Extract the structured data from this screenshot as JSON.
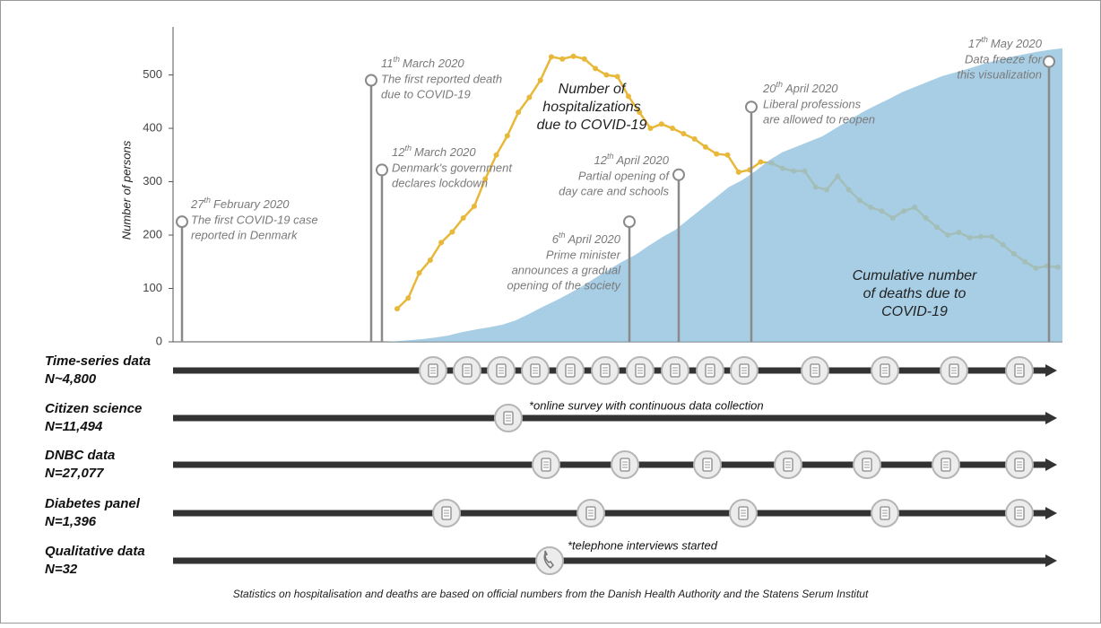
{
  "chart_data": {
    "type": "timeline",
    "y_label": "Number of persons",
    "ylim": [
      0,
      590
    ],
    "yticks": [
      0,
      100,
      200,
      300,
      400,
      500
    ],
    "series": [
      {
        "name": "hospitalizations",
        "type": "line",
        "color": "#e8b83a",
        "label_lines": [
          "Number of",
          "hospitalizations",
          "due to COVID-19"
        ],
        "values": [
          62,
          82,
          129,
          153,
          186,
          206,
          232,
          254,
          305,
          350,
          386,
          430,
          458,
          490,
          534,
          530,
          535,
          530,
          512,
          500,
          497,
          460,
          430,
          400,
          408,
          400,
          390,
          380,
          365,
          352,
          350,
          318,
          322,
          337,
          335,
          325,
          320,
          320,
          290,
          285,
          310,
          285,
          265,
          252,
          245,
          232,
          245,
          252,
          232,
          215,
          200,
          205,
          195,
          197,
          197,
          182,
          165,
          150,
          138,
          142,
          140
        ]
      },
      {
        "name": "deaths",
        "type": "area",
        "color": "#8fc0de",
        "label_lines": [
          "Cumulative number",
          "of deaths due to",
          "COVID-19"
        ],
        "values": [
          0,
          1,
          3,
          5,
          8,
          12,
          18,
          23,
          27,
          32,
          40,
          52,
          65,
          77,
          90,
          104,
          120,
          135,
          150,
          163,
          180,
          196,
          210,
          230,
          250,
          270,
          290,
          303,
          320,
          340,
          355,
          365,
          375,
          385,
          400,
          415,
          430,
          443,
          455,
          468,
          478,
          488,
          498,
          505,
          512,
          520,
          527,
          533,
          538,
          543,
          547,
          550
        ]
      }
    ],
    "events": [
      {
        "day": "27",
        "suffix": "th",
        "month": "February 2020",
        "lines": [
          "The first COVID-19 case",
          "reported in Denmark"
        ],
        "y": 225
      },
      {
        "day": "11",
        "suffix": "th",
        "month": "March 2020",
        "lines": [
          "The first reported death",
          "due to COVID-19"
        ],
        "y": 490
      },
      {
        "day": "12",
        "suffix": "th",
        "month": "March 2020",
        "lines": [
          "Denmark's government",
          "declares lockdown"
        ],
        "y": 322
      },
      {
        "day": "6",
        "suffix": "th",
        "month": "April 2020",
        "lines": [
          "Prime minister",
          "announces a gradual",
          "opening of the society"
        ],
        "y": 225
      },
      {
        "day": "12",
        "suffix": "th",
        "month": "April 2020",
        "lines": [
          "Partial opening of",
          "day care and schools"
        ],
        "y": 313
      },
      {
        "day": "20",
        "suffix": "th",
        "month": "April 2020",
        "lines": [
          "Liberal professions",
          "are allowed to reopen"
        ],
        "y": 440
      },
      {
        "day": "17",
        "suffix": "th",
        "month": "May 2020",
        "lines": [
          "Data freeze for",
          "this visualization"
        ],
        "y": 525
      }
    ]
  },
  "timelines": [
    {
      "name": "Time-series data",
      "n": "N~4,800"
    },
    {
      "name": "Citizen science",
      "n": "N=11,494",
      "note": "*online survey with continuous data collection"
    },
    {
      "name": "DNBC data",
      "n": "N=27,077"
    },
    {
      "name": "Diabetes panel",
      "n": "N=1,396"
    },
    {
      "name": "Qualitative data",
      "n": "N=32",
      "note": "*telephone interviews started"
    }
  ],
  "footer": "Statistics on hospitalisation and deaths are based on official numbers from the Danish Health Authority and the Statens Serum Institut"
}
